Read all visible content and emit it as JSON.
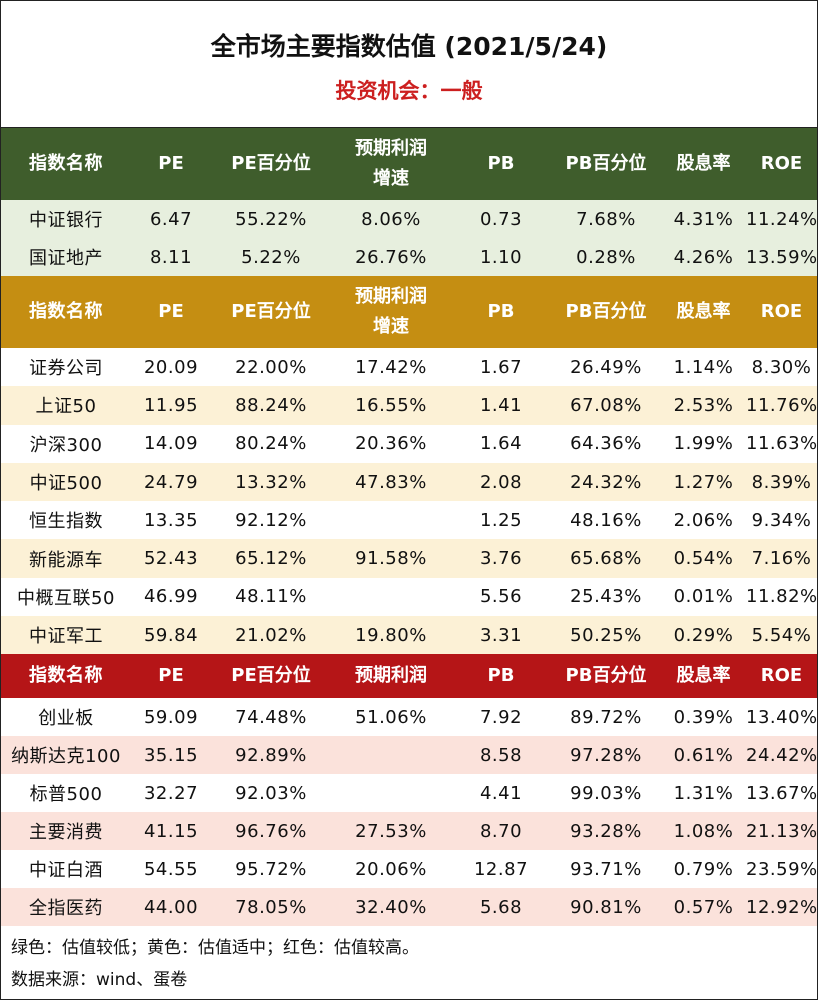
{
  "header": {
    "title": "全市场主要指数估值 (2021/5/24)",
    "subtitle": "投资机会：一般"
  },
  "columns": {
    "name": "指数名称",
    "pe": "PE",
    "pe_pct": "PE百分位",
    "growth_line1": "预期利润",
    "growth_line2": "增速",
    "pb": "PB",
    "pb_pct": "PB百分位",
    "dividend": "股息率",
    "roe": "ROE"
  },
  "colors": {
    "green_header": "#3f5d2c",
    "yellow_header": "#c58e12",
    "red_header": "#b51517",
    "green_row": "#e7efde",
    "yellow_row": "#fcf1d6",
    "red_row": "#fbe2db"
  },
  "sections": {
    "green": [
      {
        "name": "中证银行",
        "pe": "6.47",
        "pe_pct": "55.22%",
        "growth": "8.06%",
        "pb": "0.73",
        "pb_pct": "7.68%",
        "dividend": "4.31%",
        "roe": "11.24%"
      },
      {
        "name": "国证地产",
        "pe": "8.11",
        "pe_pct": "5.22%",
        "growth": "26.76%",
        "pb": "1.10",
        "pb_pct": "0.28%",
        "dividend": "4.26%",
        "roe": "13.59%"
      }
    ],
    "yellow": [
      {
        "name": "证券公司",
        "pe": "20.09",
        "pe_pct": "22.00%",
        "growth": "17.42%",
        "pb": "1.67",
        "pb_pct": "26.49%",
        "dividend": "1.14%",
        "roe": "8.30%"
      },
      {
        "name": "上证50",
        "pe": "11.95",
        "pe_pct": "88.24%",
        "growth": "16.55%",
        "pb": "1.41",
        "pb_pct": "67.08%",
        "dividend": "2.53%",
        "roe": "11.76%"
      },
      {
        "name": "沪深300",
        "pe": "14.09",
        "pe_pct": "80.24%",
        "growth": "20.36%",
        "pb": "1.64",
        "pb_pct": "64.36%",
        "dividend": "1.99%",
        "roe": "11.63%"
      },
      {
        "name": "中证500",
        "pe": "24.79",
        "pe_pct": "13.32%",
        "growth": "47.83%",
        "pb": "2.08",
        "pb_pct": "24.32%",
        "dividend": "1.27%",
        "roe": "8.39%"
      },
      {
        "name": "恒生指数",
        "pe": "13.35",
        "pe_pct": "92.12%",
        "growth": "",
        "pb": "1.25",
        "pb_pct": "48.16%",
        "dividend": "2.06%",
        "roe": "9.34%"
      },
      {
        "name": "新能源车",
        "pe": "52.43",
        "pe_pct": "65.12%",
        "growth": "91.58%",
        "pb": "3.76",
        "pb_pct": "65.68%",
        "dividend": "0.54%",
        "roe": "7.16%"
      },
      {
        "name": "中概互联50",
        "pe": "46.99",
        "pe_pct": "48.11%",
        "growth": "",
        "pb": "5.56",
        "pb_pct": "25.43%",
        "dividend": "0.01%",
        "roe": "11.82%"
      },
      {
        "name": "中证军工",
        "pe": "59.84",
        "pe_pct": "21.02%",
        "growth": "19.80%",
        "pb": "3.31",
        "pb_pct": "50.25%",
        "dividend": "0.29%",
        "roe": "5.54%"
      }
    ],
    "red": [
      {
        "name": "创业板",
        "pe": "59.09",
        "pe_pct": "74.48%",
        "growth": "51.06%",
        "pb": "7.92",
        "pb_pct": "89.72%",
        "dividend": "0.39%",
        "roe": "13.40%"
      },
      {
        "name": "纳斯达克100",
        "pe": "35.15",
        "pe_pct": "92.89%",
        "growth": "",
        "pb": "8.58",
        "pb_pct": "97.28%",
        "dividend": "0.61%",
        "roe": "24.42%"
      },
      {
        "name": "标普500",
        "pe": "32.27",
        "pe_pct": "92.03%",
        "growth": "",
        "pb": "4.41",
        "pb_pct": "99.03%",
        "dividend": "1.31%",
        "roe": "13.67%"
      },
      {
        "name": "主要消费",
        "pe": "41.15",
        "pe_pct": "96.76%",
        "growth": "27.53%",
        "pb": "8.70",
        "pb_pct": "93.28%",
        "dividend": "1.08%",
        "roe": "21.13%"
      },
      {
        "name": "中证白酒",
        "pe": "54.55",
        "pe_pct": "95.72%",
        "growth": "20.06%",
        "pb": "12.87",
        "pb_pct": "93.71%",
        "dividend": "0.79%",
        "roe": "23.59%"
      },
      {
        "name": "全指医药",
        "pe": "44.00",
        "pe_pct": "78.05%",
        "growth": "32.40%",
        "pb": "5.68",
        "pb_pct": "90.81%",
        "dividend": "0.57%",
        "roe": "12.92%"
      }
    ]
  },
  "footer": {
    "legend": "绿色：估值较低；黄色：估值适中；红色：估值较高。",
    "source": "数据来源：wind、蛋卷"
  }
}
